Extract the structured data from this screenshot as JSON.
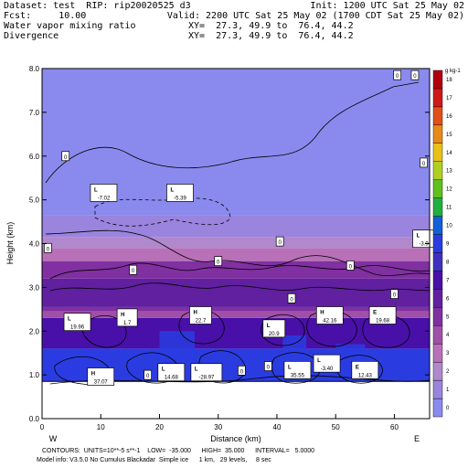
{
  "header": {
    "line1_left": "Dataset: test  RIP: rip20020525 d3",
    "line1_right": "Init: 1200 UTC Sat 25 May 02",
    "line2_left": "Fcst:     10.00",
    "line2_right": "Valid: 2200 UTC Sat 25 May 02 (1700 CDT Sat 25 May 02)",
    "line3_left": "Water vapor mixing ratio",
    "line3_right": "XY=  27.3, 49.9 to  76.4, 44.2",
    "line4_left": "Divergence",
    "line4_right": "XY=  27.3, 49.9 to  76.4, 44.2"
  },
  "chart_data": {
    "type": "heatmap",
    "xlabel": "Distance (km)",
    "ylabel": "Height (km)",
    "xlim": [
      0,
      66
    ],
    "ylim": [
      0,
      8
    ],
    "x_ticks": [
      "0",
      "10",
      "20",
      "30",
      "40",
      "50",
      "60"
    ],
    "y_ticks": [
      "0.0",
      "1.0",
      "2.0",
      "3.0",
      "4.0",
      "5.0",
      "6.0",
      "7.0",
      "8.0"
    ],
    "x_end_left": "W",
    "x_end_right": "E",
    "colorbar": {
      "unit": "g kg-1",
      "ticks": [
        "0",
        "1",
        "2",
        "3",
        "4",
        "5",
        "6",
        "7",
        "8",
        "9",
        "10",
        "11",
        "12",
        "13",
        "14",
        "15",
        "16",
        "17",
        "18"
      ],
      "colors": [
        "#8a8aee",
        "#9a84de",
        "#b088cc",
        "#b870b8",
        "#a050a8",
        "#8030a0",
        "#6020a0",
        "#4810a8",
        "#4030c0",
        "#2a3ce0",
        "#1060d8",
        "#20b040",
        "#60c020",
        "#b0d020",
        "#e8c018",
        "#e88a18",
        "#e05018",
        "#d01818",
        "#b00010"
      ]
    },
    "shaded_layers": [
      {
        "base_km": 0.85,
        "top_km": 1.6,
        "value": 9
      },
      {
        "base_km": 1.6,
        "top_km": 2.3,
        "value": 7
      },
      {
        "base_km": 2.3,
        "top_km": 2.45,
        "value": 4
      },
      {
        "base_km": 2.45,
        "top_km": 2.55,
        "value": 5
      },
      {
        "base_km": 2.55,
        "top_km": 3.2,
        "value": 6
      },
      {
        "base_km": 3.2,
        "top_km": 3.6,
        "value": 5
      },
      {
        "base_km": 3.6,
        "top_km": 3.9,
        "value": 3
      },
      {
        "base_km": 3.9,
        "top_km": 4.15,
        "value": 2
      },
      {
        "base_km": 4.15,
        "top_km": 4.65,
        "value": 1
      },
      {
        "base_km": 4.65,
        "top_km": 8.0,
        "value": 0
      }
    ],
    "blue_columns": [
      {
        "x0": 0,
        "x1": 12,
        "top_km": 1.6
      },
      {
        "x0": 20,
        "x1": 26,
        "top_km": 2.0
      },
      {
        "x0": 41,
        "x1": 45,
        "top_km": 1.9
      },
      {
        "x0": 50,
        "x1": 55,
        "top_km": 1.7
      }
    ],
    "annotations": [
      {
        "kind": "zero",
        "text": "0",
        "x": 4,
        "y": 6.0
      },
      {
        "kind": "zero",
        "text": "0",
        "x": 60.5,
        "y": 7.85
      },
      {
        "kind": "zero",
        "text": "0",
        "x": 63.5,
        "y": 7.85
      },
      {
        "kind": "zero",
        "text": "0",
        "x": 65,
        "y": 5.85
      },
      {
        "kind": "zero",
        "text": "0",
        "x": 1,
        "y": 3.9
      },
      {
        "kind": "zero",
        "text": "0",
        "x": 30,
        "y": 3.6
      },
      {
        "kind": "zero",
        "text": "0",
        "x": 40.5,
        "y": 4.05
      },
      {
        "kind": "zero",
        "text": "0",
        "x": 15.5,
        "y": 3.4
      },
      {
        "kind": "zero",
        "text": "0",
        "x": 52.5,
        "y": 3.5
      },
      {
        "kind": "zero",
        "text": "0",
        "x": 60,
        "y": 2.85
      },
      {
        "kind": "zero",
        "text": "0",
        "x": 42.5,
        "y": 2.75
      },
      {
        "kind": "zero",
        "text": "0",
        "x": 18,
        "y": 1.0
      },
      {
        "kind": "zero",
        "text": "0",
        "x": 38.5,
        "y": 1.2
      },
      {
        "kind": "zero",
        "text": "0",
        "x": 34,
        "y": 1.1
      },
      {
        "kind": "extreme",
        "letter": "L",
        "value": "-7.02",
        "x": 10.5,
        "y": 5.15
      },
      {
        "kind": "extreme",
        "letter": "L",
        "value": "-5.39",
        "x": 23.5,
        "y": 5.15
      },
      {
        "kind": "extreme",
        "letter": "L",
        "value": "-3.9",
        "x": 65,
        "y": 4.1
      },
      {
        "kind": "extreme",
        "letter": "L",
        "value": "19.96",
        "x": 6,
        "y": 2.2
      },
      {
        "kind": "extreme",
        "letter": "H",
        "value": "1.7",
        "x": 14.5,
        "y": 2.3
      },
      {
        "kind": "extreme",
        "letter": "H",
        "value": "22.7",
        "x": 27,
        "y": 2.35
      },
      {
        "kind": "extreme",
        "letter": "L",
        "value": "20.9",
        "x": 39.5,
        "y": 2.05
      },
      {
        "kind": "extreme",
        "letter": "H",
        "value": "42.16",
        "x": 49,
        "y": 2.35
      },
      {
        "kind": "extreme",
        "letter": "E",
        "value": "19.68",
        "x": 58,
        "y": 2.35
      },
      {
        "kind": "extreme",
        "letter": "H",
        "value": "37.07",
        "x": 10,
        "y": 0.95
      },
      {
        "kind": "extreme",
        "letter": "L",
        "value": "14.68",
        "x": 22,
        "y": 1.05
      },
      {
        "kind": "extreme",
        "letter": "L",
        "value": "-28.97",
        "x": 28,
        "y": 1.05
      },
      {
        "kind": "extreme",
        "letter": "L",
        "value": "35.55",
        "x": 43.5,
        "y": 1.1
      },
      {
        "kind": "extreme",
        "letter": "L",
        "value": "-3.40",
        "x": 48.5,
        "y": 1.25
      },
      {
        "kind": "extreme",
        "letter": "E",
        "value": "12.43",
        "x": 55,
        "y": 1.1
      }
    ]
  },
  "footer": {
    "line1": "CONTOURS:  UNITS=10**-5 s**-1    LOW=  -35.000      HIGH=  35.000      INTERVAL=   5.0000",
    "line2": "Model info: V3.5.0 No Cumulus Blackadar  Simple ice      1 km,   29 levels,     8 sec"
  }
}
